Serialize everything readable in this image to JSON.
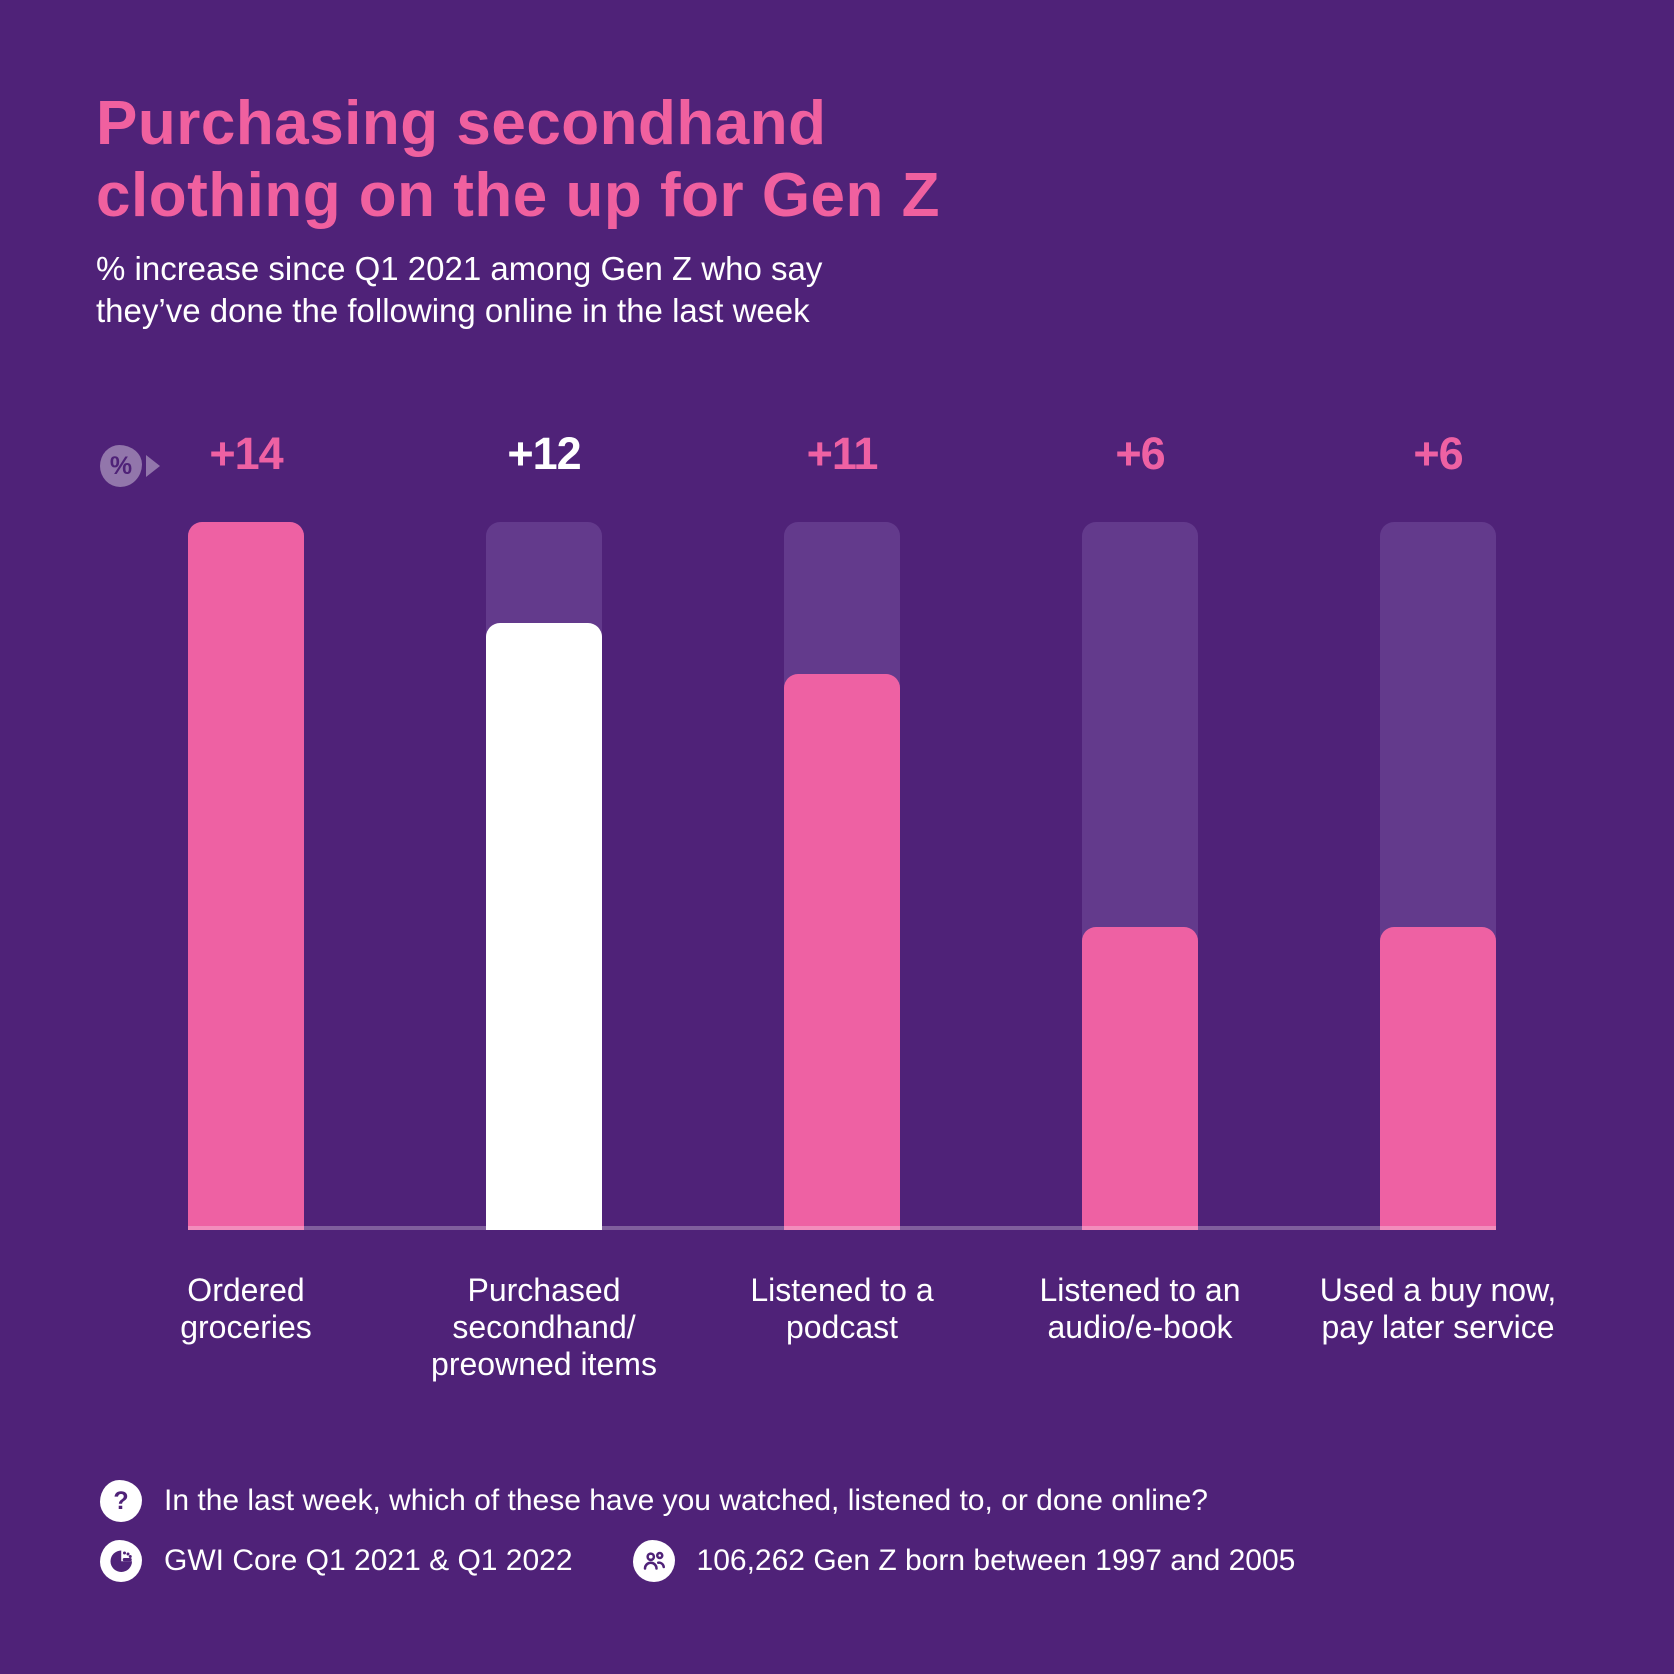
{
  "header": {
    "title": "Purchasing secondhand\nclothing on the up for Gen Z",
    "subtitle": "% increase since Q1 2021 among Gen Z who say\nthey’ve done the following online in the last week"
  },
  "axis": {
    "unit_badge": "%"
  },
  "chart_data": {
    "type": "bar",
    "title": "Purchasing secondhand clothing on the up for Gen Z",
    "subtitle": "% increase since Q1 2021 among Gen Z who say they’ve done the following online in the last week",
    "categories": [
      "Ordered groceries",
      "Purchased secondhand/preowned items",
      "Listened to a podcast",
      "Listened to an audio/e-book",
      "Used a buy now, pay later service"
    ],
    "categories_display": [
      "Ordered\ngroceries",
      "Purchased\nsecondhand/\npreowned items",
      "Listened to a\npodcast",
      "Listened to an\naudio/e-book",
      "Used a buy now,\npay later service"
    ],
    "values": [
      14,
      12,
      11,
      6,
      6
    ],
    "value_labels": [
      "+14",
      "+12",
      "+11",
      "+6",
      "+6"
    ],
    "unit": "%",
    "ylim": [
      0,
      14
    ],
    "highlight_index": 1,
    "legend": "none",
    "grid": "off",
    "colors": {
      "background": "#4f2278",
      "bar": "#ee61a3",
      "highlight_bar": "#ffffff",
      "track": "#633a8c",
      "title": "#f0609f",
      "text": "#ffffff",
      "baseline": "rgba(255,255,255,0.28)",
      "badge_bg": "rgba(255,255,255,0.38)"
    }
  },
  "footer": {
    "question": "In the last week, which of these have you watched, listened to, or done online?",
    "question_glyph": "?",
    "source": "GWI Core Q1 2021 & Q1 2022",
    "sample": "106,262 Gen Z born between 1997 and 2005"
  }
}
